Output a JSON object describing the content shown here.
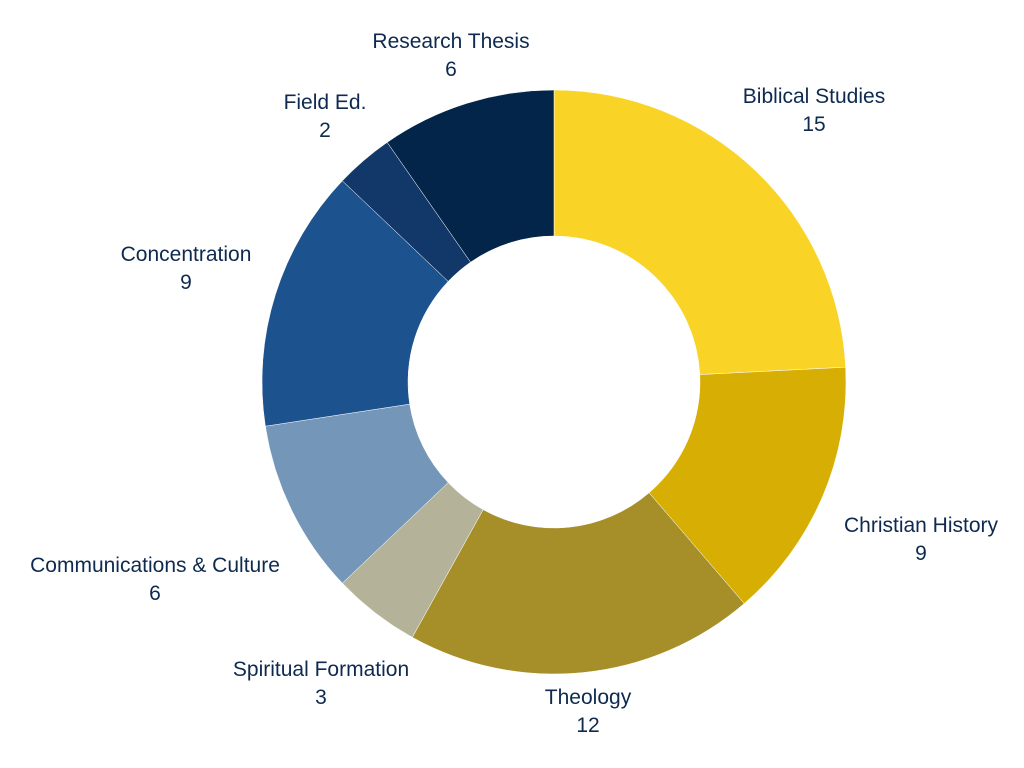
{
  "chart_data": {
    "type": "pie",
    "donut": true,
    "legend": "none",
    "slices": [
      {
        "name": "Biblical Studies",
        "value": 15,
        "value_label": "15",
        "color": "#f9d326"
      },
      {
        "name": "Christian History",
        "value": 9,
        "value_label": "9",
        "color": "#d7af04"
      },
      {
        "name": "Theology",
        "value": 12,
        "value_label": "12",
        "color": "#a68f29"
      },
      {
        "name": "Spiritual Formation",
        "value": 3,
        "value_label": "3",
        "color": "#b4b299"
      },
      {
        "name": "Communications & Culture",
        "value": 6,
        "value_label": "6",
        "color": "#7496b8"
      },
      {
        "name": "Concentration",
        "value": 9,
        "value_label": "9",
        "color": "#1c528e"
      },
      {
        "name": "Field Ed.",
        "value": 2,
        "value_label": "2",
        "color": "#123869"
      },
      {
        "name": "Research Thesis",
        "value": 6,
        "value_label": "6",
        "color": "#022549"
      }
    ]
  }
}
